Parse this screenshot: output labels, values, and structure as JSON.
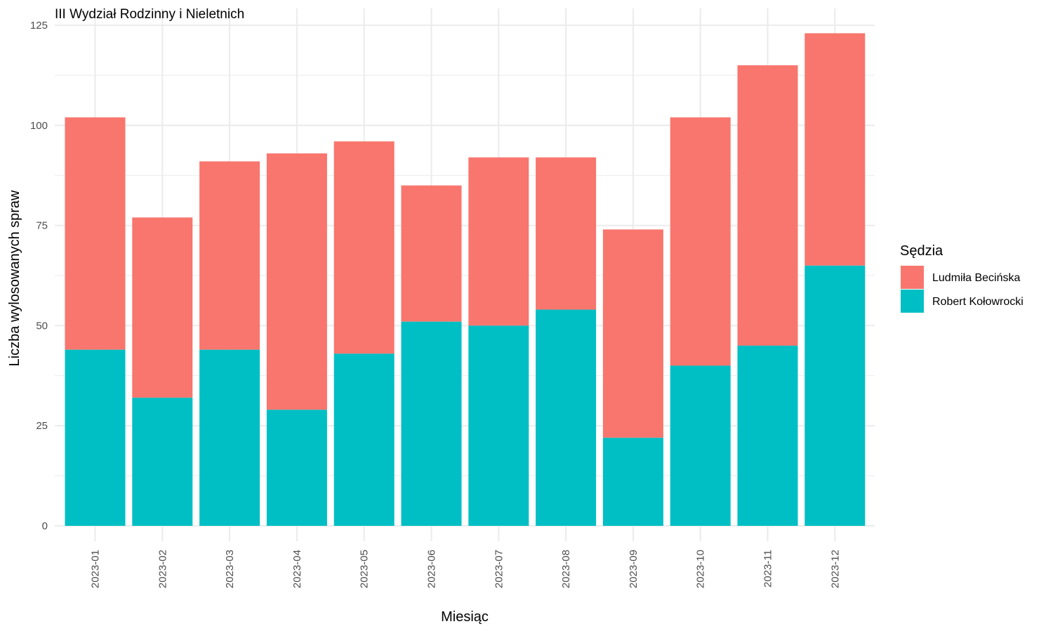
{
  "chart_data": {
    "type": "bar",
    "stacked": true,
    "title": "III Wydział Rodzinny i Nieletnich",
    "xlabel": "Miesiąc",
    "ylabel": "Liczba wylosowanych spraw",
    "ylim": [
      0,
      125
    ],
    "yticks": [
      0,
      25,
      50,
      75,
      100,
      125
    ],
    "grid": true,
    "categories": [
      "2023-01",
      "2023-02",
      "2023-03",
      "2023-04",
      "2023-05",
      "2023-06",
      "2023-07",
      "2023-08",
      "2023-09",
      "2023-10",
      "2023-11",
      "2023-12"
    ],
    "series": [
      {
        "name": "Robert Kołowrocki",
        "color": "#00BFC4",
        "values": [
          44,
          32,
          44,
          29,
          43,
          51,
          50,
          54,
          22,
          40,
          45,
          65
        ]
      },
      {
        "name": "Ludmiła Becińska",
        "color": "#F8766D",
        "values": [
          58,
          45,
          47,
          64,
          53,
          34,
          42,
          38,
          52,
          62,
          70,
          58
        ]
      }
    ],
    "legend": {
      "title": "Sędzia",
      "position": "right",
      "order": [
        "Ludmiła Becińska",
        "Robert Kołowrocki"
      ]
    }
  }
}
